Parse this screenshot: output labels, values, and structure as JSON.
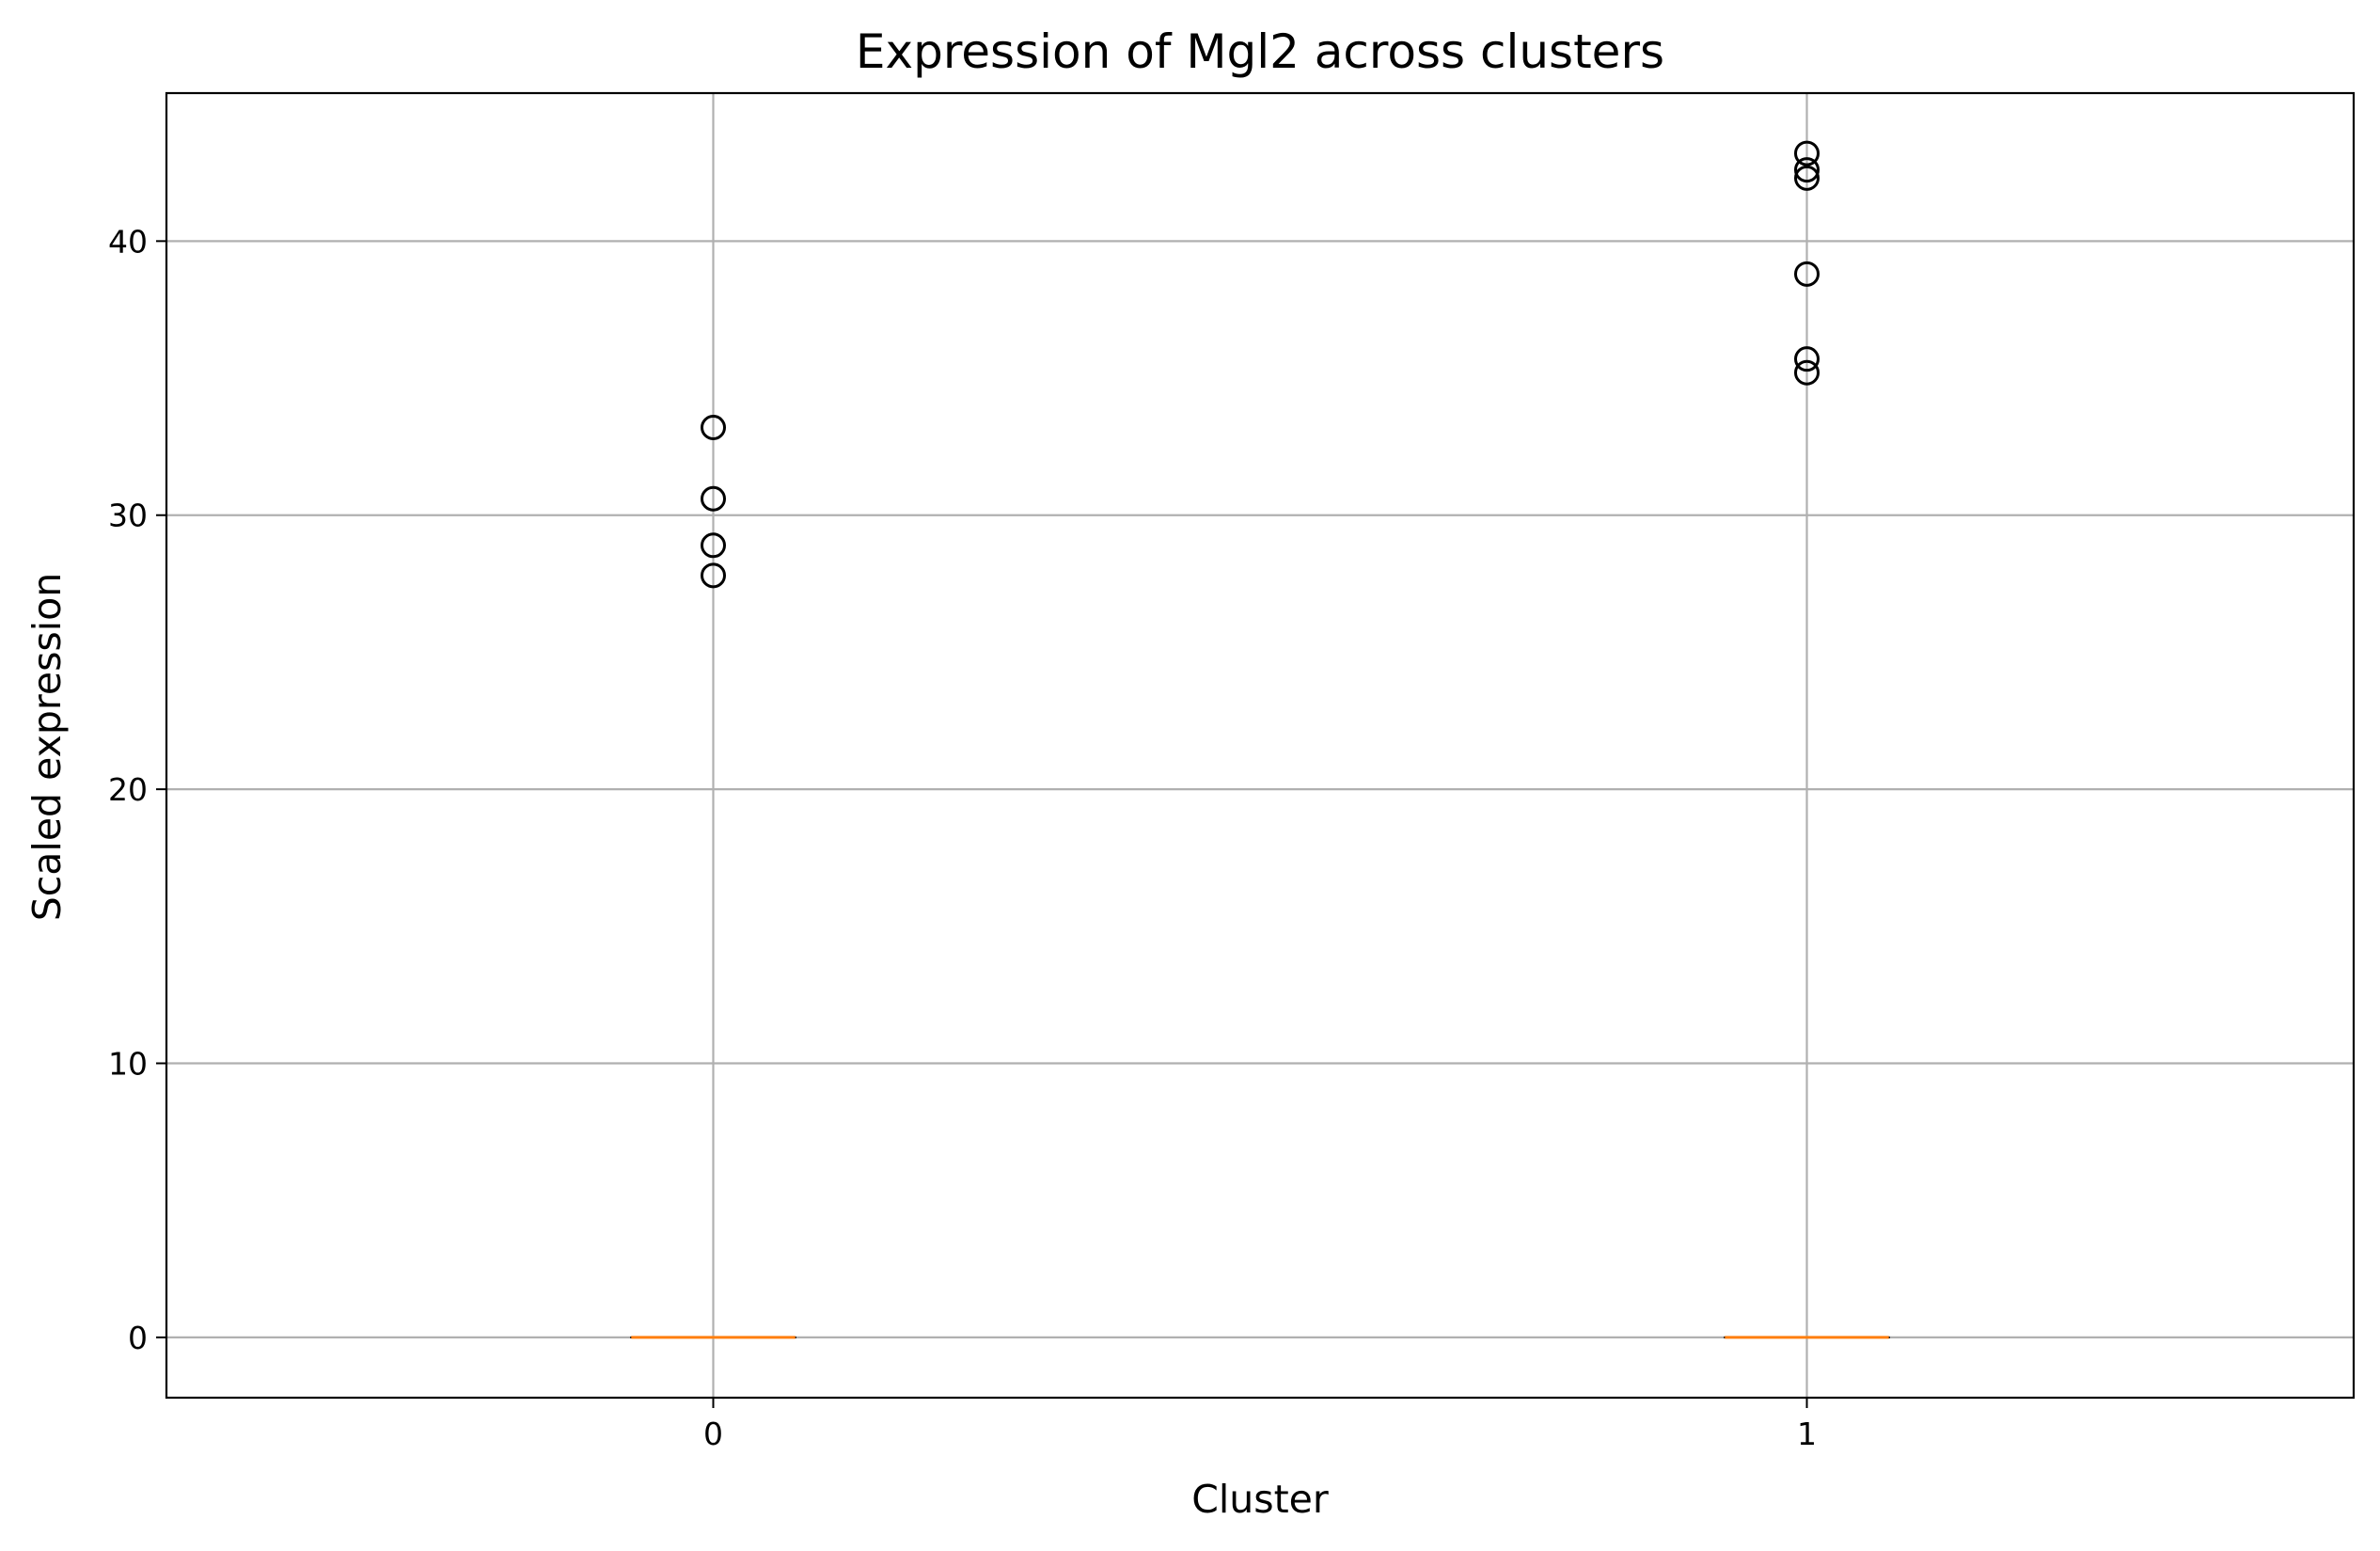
{
  "chart_data": {
    "type": "box",
    "title": "Expression of Mgl2 across clusters",
    "xlabel": "Cluster",
    "ylabel": "Scaled expression",
    "categories": [
      "0",
      "1"
    ],
    "ylim": [
      -2.2,
      45.4
    ],
    "yticks": [
      0,
      10,
      20,
      30,
      40
    ],
    "grid": true,
    "colors": {
      "median": "#ff7f0e",
      "grid": "#b0b0b0",
      "flier": "#000000"
    },
    "boxes": [
      {
        "category": "0",
        "q1": 0,
        "median": 0,
        "q3": 0,
        "whisker_low": 0,
        "whisker_high": 0,
        "outliers": [
          33.2,
          30.6,
          28.9,
          27.8
        ]
      },
      {
        "category": "1",
        "q1": 0,
        "median": 0,
        "q3": 0,
        "whisker_low": 0,
        "whisker_high": 0,
        "outliers": [
          43.2,
          42.6,
          42.3,
          38.8,
          35.7,
          35.2
        ]
      }
    ]
  }
}
